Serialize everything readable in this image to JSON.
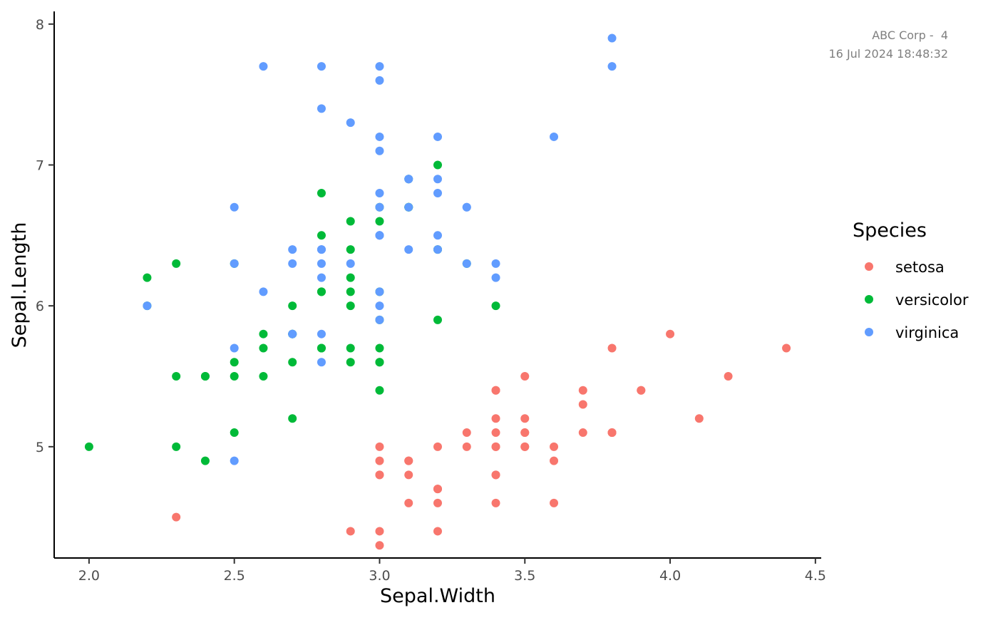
{
  "annotation": {
    "line1": "ABC Corp -  4",
    "line2": "16 Jul 2024 18:48:32"
  },
  "chart_data": {
    "type": "scatter",
    "title": "",
    "xlabel": "Sepal.Width",
    "ylabel": "Sepal.Length",
    "xlim": [
      1.88,
      4.52
    ],
    "ylim": [
      4.21,
      8.09
    ],
    "x_ticks": [
      2.0,
      2.5,
      3.0,
      3.5,
      4.0,
      4.5
    ],
    "x_tick_labels": [
      "2.0",
      "2.5",
      "3.0",
      "3.5",
      "4.0",
      "4.5"
    ],
    "y_ticks": [
      5,
      6,
      7,
      8
    ],
    "y_tick_labels": [
      "5",
      "6",
      "7",
      "8"
    ],
    "grid": false,
    "legend": {
      "title": "Species",
      "position": "right"
    },
    "series": [
      {
        "name": "setosa",
        "color": "#F8766D",
        "points": [
          [
            3.5,
            5.1
          ],
          [
            3.0,
            4.9
          ],
          [
            3.2,
            4.7
          ],
          [
            3.1,
            4.6
          ],
          [
            3.6,
            5.0
          ],
          [
            3.9,
            5.4
          ],
          [
            3.4,
            4.6
          ],
          [
            3.4,
            5.0
          ],
          [
            2.9,
            4.4
          ],
          [
            3.1,
            4.9
          ],
          [
            3.7,
            5.4
          ],
          [
            3.4,
            4.8
          ],
          [
            3.0,
            4.8
          ],
          [
            3.0,
            4.3
          ],
          [
            4.0,
            5.8
          ],
          [
            4.4,
            5.7
          ],
          [
            3.9,
            5.4
          ],
          [
            3.5,
            5.1
          ],
          [
            3.8,
            5.7
          ],
          [
            3.8,
            5.1
          ],
          [
            3.4,
            5.4
          ],
          [
            3.7,
            5.1
          ],
          [
            3.6,
            4.6
          ],
          [
            3.3,
            5.1
          ],
          [
            3.4,
            4.8
          ],
          [
            3.0,
            5.0
          ],
          [
            3.4,
            5.0
          ],
          [
            3.5,
            5.2
          ],
          [
            3.4,
            5.2
          ],
          [
            3.2,
            4.7
          ],
          [
            3.1,
            4.8
          ],
          [
            3.4,
            5.4
          ],
          [
            4.1,
            5.2
          ],
          [
            4.2,
            5.5
          ],
          [
            3.1,
            4.9
          ],
          [
            3.2,
            5.0
          ],
          [
            3.5,
            5.5
          ],
          [
            3.6,
            4.9
          ],
          [
            3.0,
            4.4
          ],
          [
            3.4,
            5.1
          ],
          [
            3.5,
            5.0
          ],
          [
            2.3,
            4.5
          ],
          [
            3.2,
            4.4
          ],
          [
            3.5,
            5.0
          ],
          [
            3.8,
            5.1
          ],
          [
            3.0,
            4.8
          ],
          [
            3.8,
            5.1
          ],
          [
            3.2,
            4.6
          ],
          [
            3.7,
            5.3
          ],
          [
            3.3,
            5.0
          ]
        ]
      },
      {
        "name": "versicolor",
        "color": "#00BA38",
        "points": [
          [
            3.2,
            7.0
          ],
          [
            3.2,
            6.4
          ],
          [
            3.1,
            6.9
          ],
          [
            2.3,
            5.5
          ],
          [
            2.8,
            6.5
          ],
          [
            2.8,
            5.7
          ],
          [
            3.3,
            6.3
          ],
          [
            2.4,
            4.9
          ],
          [
            2.9,
            6.6
          ],
          [
            2.7,
            5.2
          ],
          [
            2.0,
            5.0
          ],
          [
            3.0,
            5.9
          ],
          [
            2.2,
            6.0
          ],
          [
            2.9,
            6.1
          ],
          [
            2.9,
            5.6
          ],
          [
            3.1,
            6.7
          ],
          [
            3.0,
            5.6
          ],
          [
            2.7,
            5.8
          ],
          [
            2.2,
            6.2
          ],
          [
            2.5,
            5.6
          ],
          [
            3.2,
            5.9
          ],
          [
            2.8,
            6.1
          ],
          [
            2.5,
            6.3
          ],
          [
            2.8,
            6.1
          ],
          [
            2.9,
            6.4
          ],
          [
            3.0,
            6.6
          ],
          [
            2.8,
            6.8
          ],
          [
            3.0,
            6.7
          ],
          [
            2.9,
            6.0
          ],
          [
            2.6,
            5.7
          ],
          [
            2.4,
            5.5
          ],
          [
            2.4,
            5.5
          ],
          [
            2.7,
            5.8
          ],
          [
            2.7,
            6.0
          ],
          [
            3.0,
            5.4
          ],
          [
            3.4,
            6.0
          ],
          [
            3.1,
            6.7
          ],
          [
            2.3,
            6.3
          ],
          [
            3.0,
            5.6
          ],
          [
            2.5,
            5.5
          ],
          [
            2.6,
            5.5
          ],
          [
            3.0,
            6.1
          ],
          [
            2.6,
            5.8
          ],
          [
            2.3,
            5.0
          ],
          [
            2.7,
            5.6
          ],
          [
            3.0,
            5.7
          ],
          [
            2.9,
            5.7
          ],
          [
            2.9,
            6.2
          ],
          [
            2.5,
            5.1
          ],
          [
            2.8,
            5.7
          ]
        ]
      },
      {
        "name": "virginica",
        "color": "#619CFF",
        "points": [
          [
            3.3,
            6.3
          ],
          [
            2.7,
            5.8
          ],
          [
            3.0,
            7.1
          ],
          [
            2.9,
            6.3
          ],
          [
            3.0,
            6.5
          ],
          [
            3.0,
            7.6
          ],
          [
            2.5,
            4.9
          ],
          [
            2.9,
            7.3
          ],
          [
            2.5,
            6.7
          ],
          [
            3.6,
            7.2
          ],
          [
            3.2,
            6.5
          ],
          [
            2.7,
            6.4
          ],
          [
            3.0,
            6.8
          ],
          [
            2.5,
            5.7
          ],
          [
            2.8,
            5.8
          ],
          [
            3.2,
            6.4
          ],
          [
            3.0,
            6.5
          ],
          [
            3.8,
            7.7
          ],
          [
            2.6,
            7.7
          ],
          [
            2.2,
            6.0
          ],
          [
            3.2,
            6.9
          ],
          [
            2.8,
            5.6
          ],
          [
            2.8,
            7.7
          ],
          [
            2.7,
            6.3
          ],
          [
            3.3,
            6.7
          ],
          [
            3.2,
            7.2
          ],
          [
            2.8,
            6.2
          ],
          [
            3.0,
            6.1
          ],
          [
            2.8,
            6.4
          ],
          [
            3.0,
            7.2
          ],
          [
            2.8,
            7.4
          ],
          [
            3.8,
            7.9
          ],
          [
            2.8,
            6.4
          ],
          [
            2.8,
            6.3
          ],
          [
            2.6,
            6.1
          ],
          [
            3.0,
            7.7
          ],
          [
            3.4,
            6.3
          ],
          [
            3.1,
            6.4
          ],
          [
            3.0,
            6.0
          ],
          [
            3.1,
            6.9
          ],
          [
            3.1,
            6.7
          ],
          [
            3.1,
            6.9
          ],
          [
            2.7,
            5.8
          ],
          [
            3.2,
            6.8
          ],
          [
            3.3,
            6.7
          ],
          [
            3.0,
            6.7
          ],
          [
            2.5,
            6.3
          ],
          [
            3.0,
            6.5
          ],
          [
            3.4,
            6.2
          ],
          [
            3.0,
            5.9
          ]
        ]
      }
    ]
  }
}
